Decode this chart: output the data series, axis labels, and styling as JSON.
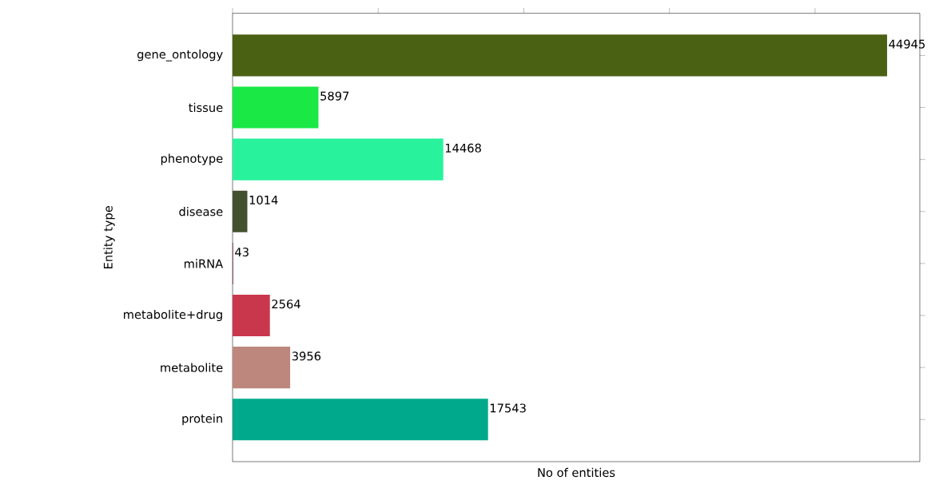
{
  "chart_data": {
    "type": "bar",
    "orientation": "horizontal",
    "xlabel": "No of entities",
    "ylabel": "Entity type",
    "categories": [
      "gene_ontology",
      "tissue",
      "phenotype",
      "disease",
      "miRNA",
      "metabolite+drug",
      "metabolite",
      "protein"
    ],
    "values": [
      44945,
      5897,
      14468,
      1014,
      43,
      2564,
      3956,
      17543
    ],
    "colors": [
      "#4a6114",
      "#19e845",
      "#29f29d",
      "#44512f",
      "#7a3b5c",
      "#c9374d",
      "#bd877d",
      "#00a98b"
    ],
    "xlim": [
      0,
      47192
    ],
    "xticks": [
      {
        "value": 0,
        "label": null
      },
      {
        "value": 10000,
        "label": null
      },
      {
        "value": 20000,
        "label": null
      },
      {
        "value": 30000,
        "label": null
      },
      {
        "value": 40000,
        "label": null
      }
    ],
    "tick_labels": "y",
    "data_labels": true
  }
}
